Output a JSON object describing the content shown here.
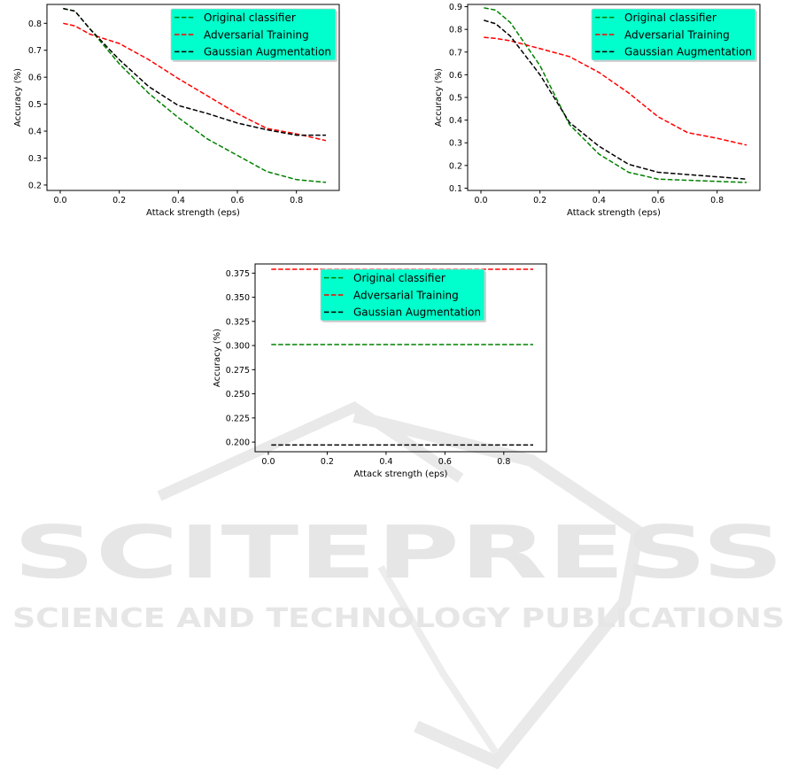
{
  "watermark": {
    "title": "SCITEPRESS",
    "subtitle": "SCIENCE AND TECHNOLOGY PUBLICATIONS"
  },
  "colors": {
    "original": "#008000",
    "adversarial": "#ff0000",
    "gaussian": "#000000",
    "legend_bg": "#00ffcc",
    "watermark": "#e6e6e6"
  },
  "chart_data": [
    {
      "type": "line",
      "title": "",
      "xlabel": "Attack strength (eps)",
      "ylabel": "Accuracy (%)",
      "xlim": [
        -0.045,
        0.945
      ],
      "ylim": [
        0.18,
        0.87
      ],
      "xticks": [
        0.0,
        0.2,
        0.4,
        0.6,
        0.8
      ],
      "xtick_labels": [
        "0.0",
        "0.2",
        "0.4",
        "0.6",
        "0.8"
      ],
      "yticks": [
        0.2,
        0.3,
        0.4,
        0.5,
        0.6,
        0.7,
        0.8
      ],
      "ytick_labels": [
        "0.2",
        "0.3",
        "0.4",
        "0.5",
        "0.6",
        "0.7",
        "0.8"
      ],
      "grid": false,
      "legend_position": "top-right",
      "x": [
        0.01,
        0.05,
        0.1,
        0.2,
        0.3,
        0.4,
        0.5,
        0.6,
        0.7,
        0.8,
        0.9
      ],
      "series": [
        {
          "name": "Original classifier",
          "color_key": "original",
          "values": [
            0.855,
            0.845,
            0.78,
            0.65,
            0.54,
            0.45,
            0.37,
            0.31,
            0.25,
            0.22,
            0.21
          ]
        },
        {
          "name": "Adversarial Training",
          "color_key": "adversarial",
          "values": [
            0.8,
            0.79,
            0.76,
            0.725,
            0.665,
            0.595,
            0.53,
            0.465,
            0.41,
            0.39,
            0.365
          ]
        },
        {
          "name": "Gaussian Augmentation",
          "color_key": "gaussian",
          "values": [
            0.855,
            0.845,
            0.78,
            0.665,
            0.565,
            0.495,
            0.465,
            0.43,
            0.405,
            0.385,
            0.385
          ]
        }
      ]
    },
    {
      "type": "line",
      "title": "",
      "xlabel": "Attack strength (eps)",
      "ylabel": "Accuracy (%)",
      "xlim": [
        -0.045,
        0.945
      ],
      "ylim": [
        0.09,
        0.91
      ],
      "xticks": [
        0.0,
        0.2,
        0.4,
        0.6,
        0.8
      ],
      "xtick_labels": [
        "0.0",
        "0.2",
        "0.4",
        "0.6",
        "0.8"
      ],
      "yticks": [
        0.1,
        0.2,
        0.3,
        0.4,
        0.5,
        0.6,
        0.7,
        0.8,
        0.9
      ],
      "ytick_labels": [
        "0.1",
        "0.2",
        "0.3",
        "0.4",
        "0.5",
        "0.6",
        "0.7",
        "0.8",
        "0.9"
      ],
      "grid": false,
      "legend_position": "top-right",
      "x": [
        0.01,
        0.05,
        0.1,
        0.2,
        0.3,
        0.4,
        0.5,
        0.6,
        0.7,
        0.8,
        0.9
      ],
      "series": [
        {
          "name": "Original classifier",
          "color_key": "original",
          "values": [
            0.895,
            0.885,
            0.83,
            0.64,
            0.38,
            0.25,
            0.17,
            0.14,
            0.135,
            0.13,
            0.125
          ]
        },
        {
          "name": "Adversarial Training",
          "color_key": "adversarial",
          "values": [
            0.765,
            0.76,
            0.75,
            0.715,
            0.68,
            0.61,
            0.52,
            0.415,
            0.345,
            0.32,
            0.29
          ]
        },
        {
          "name": "Gaussian Augmentation",
          "color_key": "gaussian",
          "values": [
            0.84,
            0.825,
            0.77,
            0.6,
            0.39,
            0.285,
            0.205,
            0.17,
            0.16,
            0.15,
            0.14
          ]
        }
      ]
    },
    {
      "type": "line",
      "title": "",
      "xlabel": "Attack strength (eps)",
      "ylabel": "Accuracy (%)",
      "xlim": [
        -0.045,
        0.945
      ],
      "ylim": [
        0.19,
        0.3845
      ],
      "xticks": [
        0.0,
        0.2,
        0.4,
        0.6,
        0.8
      ],
      "xtick_labels": [
        "0.0",
        "0.2",
        "0.4",
        "0.6",
        "0.8"
      ],
      "yticks": [
        0.2,
        0.225,
        0.25,
        0.275,
        0.3,
        0.325,
        0.35,
        0.375
      ],
      "ytick_labels": [
        "0.200",
        "0.225",
        "0.250",
        "0.275",
        "0.300",
        "0.325",
        "0.350",
        "0.375"
      ],
      "grid": false,
      "legend_position": "top-center",
      "x": [
        0.01,
        0.9
      ],
      "series": [
        {
          "name": "Original classifier",
          "color_key": "original",
          "values": [
            0.301,
            0.301
          ]
        },
        {
          "name": "Adversarial Training",
          "color_key": "adversarial",
          "values": [
            0.379,
            0.379
          ]
        },
        {
          "name": "Gaussian Augmentation",
          "color_key": "gaussian",
          "values": [
            0.197,
            0.197
          ]
        }
      ]
    }
  ]
}
